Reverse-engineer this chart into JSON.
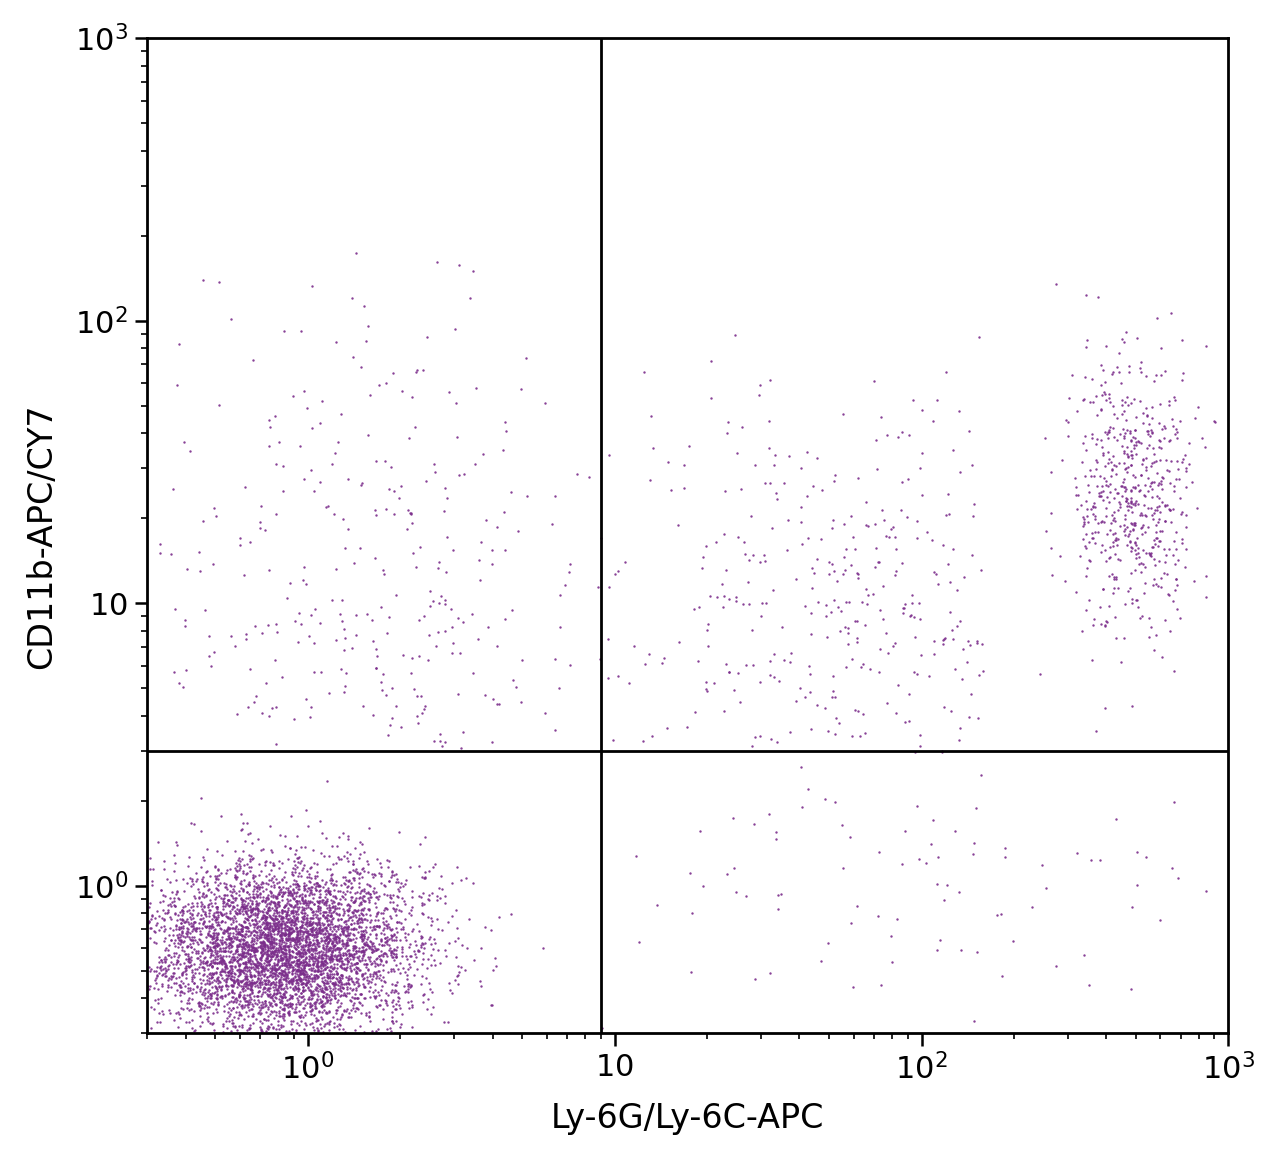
{
  "xlabel": "Ly-6G/Ly-6C-APC",
  "ylabel": "CD11b-APC/CY7",
  "dot_color": "#7B2D8B",
  "dot_size": 3.0,
  "dot_alpha": 0.9,
  "quadrant_x": 9.0,
  "quadrant_y": 3.0,
  "background_color": "#ffffff",
  "xlabel_fontsize": 24,
  "ylabel_fontsize": 24,
  "tick_fontsize": 22,
  "quadrant_linewidth": 2.0,
  "xlim_low": 0.3,
  "xlim_high": 1000,
  "ylim_low": 0.3,
  "ylim_high": 1000,
  "clusters": [
    {
      "name": "bottom_left_dense",
      "n_points": 5000,
      "center_x_log": -0.08,
      "center_y_log": -0.22,
      "std_x_log": 0.22,
      "std_y_log": 0.15,
      "xmin_log": -0.52,
      "xmax_log": 0.95,
      "ymin_log": -0.52,
      "ymax_log": 0.47
    },
    {
      "name": "upper_left_scatter",
      "n_points": 320,
      "center_x_log": 0.15,
      "center_y_log": 1.05,
      "std_x_log": 0.42,
      "std_y_log": 0.48,
      "xmin_log": -0.52,
      "xmax_log": 0.95,
      "ymin_log": 0.47,
      "ymax_log": 3.0
    },
    {
      "name": "upper_right_dense_cluster",
      "n_points": 600,
      "center_x_log": 2.68,
      "center_y_log": 1.38,
      "std_x_log": 0.1,
      "std_y_log": 0.25,
      "xmin_log": 2.2,
      "xmax_log": 3.0,
      "ymin_log": 0.47,
      "ymax_log": 3.0
    },
    {
      "name": "upper_right_scatter",
      "n_points": 350,
      "center_x_log": 1.85,
      "center_y_log": 1.05,
      "std_x_log": 0.42,
      "std_y_log": 0.38,
      "xmin_log": 0.95,
      "xmax_log": 2.2,
      "ymin_log": 0.47,
      "ymax_log": 3.0
    },
    {
      "name": "bottom_right_sparse",
      "n_points": 90,
      "center_x_log": 1.9,
      "center_y_log": -0.05,
      "std_x_log": 0.55,
      "std_y_log": 0.22,
      "xmin_log": 0.95,
      "xmax_log": 3.0,
      "ymin_log": -0.52,
      "ymax_log": 0.47
    }
  ]
}
